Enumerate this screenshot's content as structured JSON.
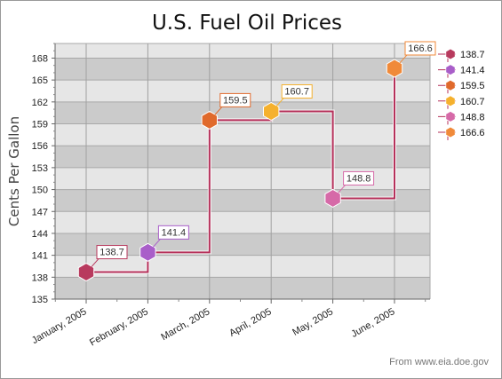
{
  "chart_data": {
    "type": "line",
    "subtype": "step",
    "title": "U.S. Fuel Oil Prices",
    "ylabel": "Cents Per Gallon",
    "xlabel": "",
    "categories": [
      "January, 2005",
      "February, 2005",
      "March, 2005",
      "April, 2005",
      "May, 2005",
      "June, 2005"
    ],
    "values": [
      138.7,
      141.4,
      159.5,
      160.7,
      148.8,
      166.6
    ],
    "data_labels": [
      "138.7",
      "141.4",
      "159.5",
      "160.7",
      "148.8",
      "166.6"
    ],
    "point_colors": [
      "#b83a5e",
      "#a95ec9",
      "#e06a2c",
      "#f5b12e",
      "#d66aa8",
      "#f08a3a"
    ],
    "line_color": "#b5305a",
    "ylim": [
      135,
      170
    ],
    "yticks": [
      135,
      138,
      141,
      144,
      147,
      150,
      153,
      156,
      159,
      162,
      165,
      168
    ],
    "grid": true,
    "legend": {
      "position": "right",
      "entries": [
        "138.7",
        "141.4",
        "159.5",
        "160.7",
        "148.8",
        "166.6"
      ]
    },
    "source": "From www.eia.doe.gov"
  }
}
